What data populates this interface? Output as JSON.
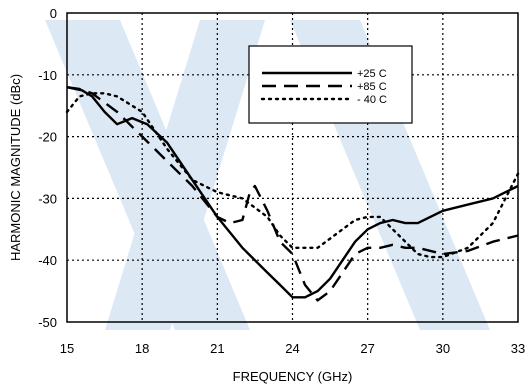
{
  "chart_data": {
    "type": "line",
    "title": "",
    "xlabel": "FREQUENCY (GHz)",
    "ylabel": "HARMONIC MAGNITUDE (dBc)",
    "xlim": [
      15,
      33
    ],
    "ylim": [
      -50,
      0
    ],
    "xticks": [
      15,
      18,
      21,
      24,
      27,
      30,
      33
    ],
    "yticks": [
      0,
      -10,
      -20,
      -30,
      -40,
      -50
    ],
    "grid": true,
    "legend_position": "top-right",
    "series": [
      {
        "name": "+25 C",
        "style": "solid",
        "color": "#000000",
        "x": [
          15.0,
          15.6,
          16.0,
          16.5,
          17.0,
          17.6,
          18.2,
          19.0,
          20.0,
          21.0,
          22.0,
          23.0,
          23.5,
          24.0,
          24.5,
          25.0,
          25.5,
          26.0,
          26.5,
          27.0,
          27.5,
          28.0,
          28.5,
          29.0,
          29.5,
          30.0,
          31.0,
          32.0,
          33.0
        ],
        "y": [
          -12,
          -12.5,
          -13.5,
          -16,
          -18,
          -17,
          -18,
          -21,
          -27,
          -33,
          -38,
          -42,
          -44,
          -46,
          -46,
          -45,
          -43,
          -40,
          -37,
          -35,
          -34,
          -33.5,
          -34,
          -34,
          -33,
          -32,
          -31,
          -30,
          -28
        ]
      },
      {
        "name": "+85 C",
        "style": "dashed",
        "color": "#000000",
        "x": [
          15.0,
          15.5,
          16.0,
          16.5,
          17.0,
          18.0,
          19.0,
          20.0,
          21.0,
          21.5,
          22.0,
          22.3,
          22.5,
          23.0,
          23.5,
          24.0,
          24.5,
          25.0,
          25.5,
          26.0,
          26.5,
          27.0,
          27.5,
          28.0,
          28.5,
          29.0,
          30.0,
          31.0,
          32.0,
          33.0
        ],
        "y": [
          -12,
          -12.3,
          -13,
          -14.5,
          -16,
          -20,
          -24,
          -28,
          -33,
          -34,
          -33.5,
          -29,
          -28,
          -32,
          -37,
          -39,
          -44,
          -46.5,
          -45,
          -42,
          -39,
          -38,
          -38,
          -37.5,
          -38,
          -38,
          -39,
          -38.5,
          -37,
          -36
        ]
      },
      {
        "name": "- 40 C",
        "style": "dotted",
        "color": "#000000",
        "x": [
          15.0,
          15.5,
          16.0,
          16.5,
          17.0,
          18.0,
          19.0,
          20.0,
          21.0,
          22.0,
          23.0,
          23.5,
          24.0,
          24.5,
          25.0,
          25.5,
          26.0,
          26.5,
          27.0,
          27.5,
          28.0,
          28.5,
          29.0,
          29.5,
          30.0,
          31.0,
          32.0,
          33.0
        ],
        "y": [
          -16,
          -13.5,
          -13,
          -13,
          -13.5,
          -16,
          -22,
          -27,
          -29,
          -30,
          -33,
          -36,
          -38,
          -38,
          -38,
          -36.5,
          -35,
          -33.5,
          -33,
          -33,
          -35,
          -37,
          -39,
          -39.5,
          -39.5,
          -38,
          -34,
          -26
        ]
      }
    ]
  },
  "colors": {
    "axis": "#000000",
    "grid": "#000000",
    "watermark": "#dde8f5"
  }
}
